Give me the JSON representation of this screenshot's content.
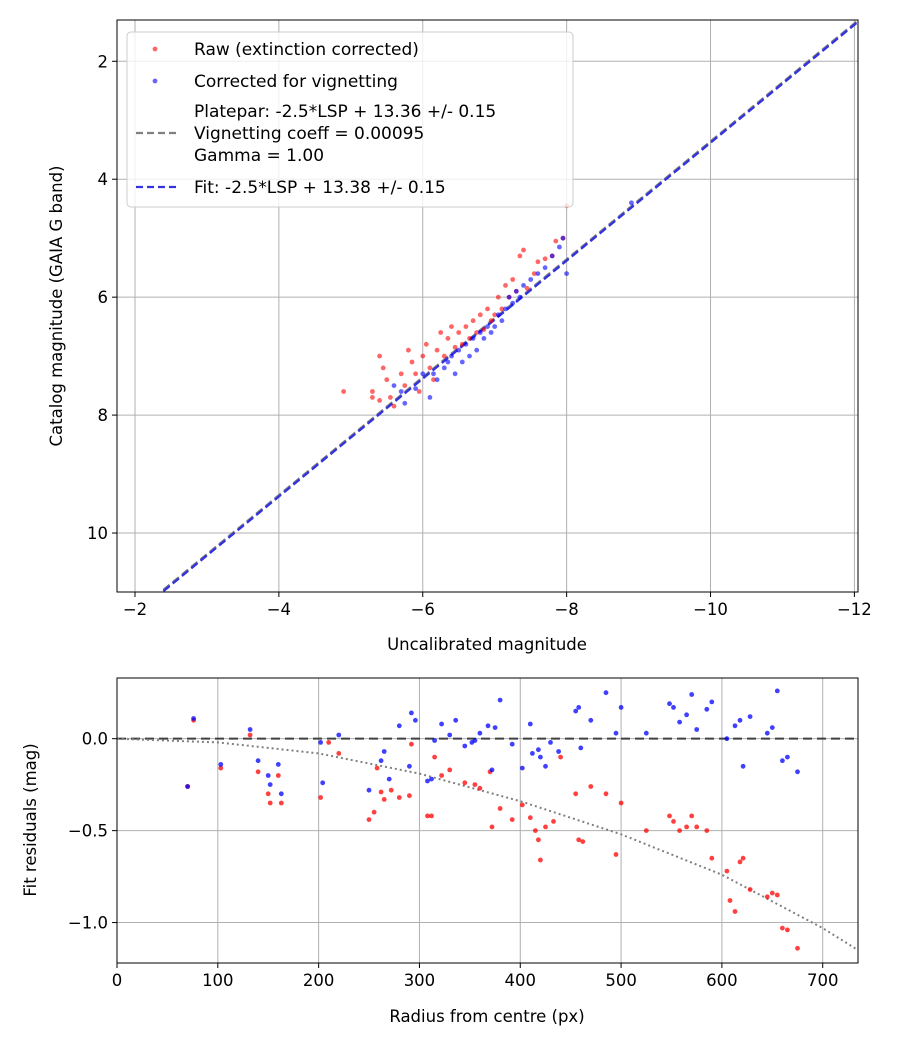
{
  "chart_data": [
    {
      "type": "scatter",
      "xlabel": "Uncalibrated magnitude",
      "ylabel": "Catalog magnitude (GAIA G band)",
      "xlim": [
        -1.75,
        -12.05
      ],
      "ylim": [
        11.0,
        1.3
      ],
      "x_inverted": true,
      "y_inverted": true,
      "xticks": [
        -2,
        -4,
        -6,
        -8,
        -10,
        -12
      ],
      "xtick_labels": [
        "−2",
        "−4",
        "−6",
        "−8",
        "−10",
        "−12"
      ],
      "yticks": [
        2,
        4,
        6,
        8,
        10
      ],
      "ytick_labels": [
        "2",
        "4",
        "6",
        "8",
        "10"
      ],
      "grid": true,
      "legend_position": "upper-left",
      "legend": [
        {
          "label": "Raw (extinction corrected)",
          "kind": "marker",
          "color": "#ff0000"
        },
        {
          "label": "Corrected for vignetting",
          "kind": "marker",
          "color": "#0000ff"
        },
        {
          "lines": [
            "Platepar: -2.5*LSP + 13.36 +/- 0.15",
            "Vignetting coeff = 0.00095",
            "Gamma = 1.00"
          ],
          "kind": "dashed",
          "color": "#808080"
        },
        {
          "label": "Fit: -2.5*LSP + 13.38 +/- 0.15",
          "kind": "dashed",
          "color": "#3333dd"
        }
      ],
      "lines": [
        {
          "name": "platepar",
          "slope": 1,
          "intercept": 13.36,
          "color": "#808080",
          "style": "dashed"
        },
        {
          "name": "fit",
          "slope": 1,
          "intercept": 13.38,
          "color": "#3333dd",
          "style": "dashed"
        }
      ],
      "series": [
        {
          "name": "Raw (extinction corrected)",
          "color": "#ff0000",
          "points": [
            [
              -4.9,
              7.6
            ],
            [
              -5.3,
              7.6
            ],
            [
              -5.3,
              7.7
            ],
            [
              -5.4,
              7.75
            ],
            [
              -5.4,
              7.0
            ],
            [
              -5.45,
              7.2
            ],
            [
              -5.5,
              7.4
            ],
            [
              -5.55,
              7.7
            ],
            [
              -5.6,
              7.85
            ],
            [
              -5.7,
              7.3
            ],
            [
              -5.75,
              7.5
            ],
            [
              -5.8,
              6.9
            ],
            [
              -5.85,
              7.1
            ],
            [
              -5.9,
              7.3
            ],
            [
              -5.95,
              7.6
            ],
            [
              -6.0,
              7.0
            ],
            [
              -6.05,
              6.8
            ],
            [
              -6.1,
              7.2
            ],
            [
              -6.15,
              7.4
            ],
            [
              -6.2,
              6.9
            ],
            [
              -6.25,
              6.6
            ],
            [
              -6.3,
              7.0
            ],
            [
              -6.35,
              6.7
            ],
            [
              -6.4,
              6.5
            ],
            [
              -6.45,
              6.85
            ],
            [
              -6.5,
              6.6
            ],
            [
              -6.55,
              6.8
            ],
            [
              -6.6,
              6.5
            ],
            [
              -6.65,
              6.7
            ],
            [
              -6.7,
              6.4
            ],
            [
              -6.75,
              6.6
            ],
            [
              -6.8,
              6.3
            ],
            [
              -6.85,
              6.55
            ],
            [
              -6.9,
              6.2
            ],
            [
              -6.95,
              6.4
            ],
            [
              -7.0,
              6.3
            ],
            [
              -7.05,
              6.0
            ],
            [
              -7.1,
              6.2
            ],
            [
              -7.15,
              5.8
            ],
            [
              -7.2,
              6.0
            ],
            [
              -7.25,
              5.7
            ],
            [
              -7.3,
              5.9
            ],
            [
              -7.35,
              5.3
            ],
            [
              -7.4,
              5.2
            ],
            [
              -7.45,
              5.85
            ],
            [
              -7.55,
              5.6
            ],
            [
              -7.6,
              5.4
            ],
            [
              -7.7,
              5.35
            ],
            [
              -7.8,
              5.3
            ],
            [
              -7.85,
              5.05
            ],
            [
              -7.95,
              5.0
            ],
            [
              -8.0,
              4.45
            ]
          ]
        },
        {
          "name": "Corrected for vignetting",
          "color": "#0000ff",
          "points": [
            [
              -5.6,
              7.5
            ],
            [
              -5.7,
              7.6
            ],
            [
              -5.75,
              7.8
            ],
            [
              -5.9,
              7.55
            ],
            [
              -6.0,
              7.3
            ],
            [
              -6.1,
              7.7
            ],
            [
              -6.15,
              7.3
            ],
            [
              -6.2,
              7.4
            ],
            [
              -6.3,
              7.2
            ],
            [
              -6.35,
              7.1
            ],
            [
              -6.4,
              7.0
            ],
            [
              -6.45,
              7.3
            ],
            [
              -6.5,
              6.9
            ],
            [
              -6.55,
              7.1
            ],
            [
              -6.6,
              6.8
            ],
            [
              -6.65,
              7.0
            ],
            [
              -6.7,
              6.7
            ],
            [
              -6.75,
              6.9
            ],
            [
              -6.8,
              6.6
            ],
            [
              -6.85,
              6.7
            ],
            [
              -6.9,
              6.5
            ],
            [
              -6.95,
              6.6
            ],
            [
              -7.0,
              6.5
            ],
            [
              -7.05,
              6.3
            ],
            [
              -7.1,
              6.4
            ],
            [
              -7.15,
              6.2
            ],
            [
              -7.2,
              6.0
            ],
            [
              -7.25,
              6.1
            ],
            [
              -7.3,
              5.9
            ],
            [
              -7.35,
              6.0
            ],
            [
              -7.4,
              5.8
            ],
            [
              -7.5,
              5.7
            ],
            [
              -7.6,
              5.6
            ],
            [
              -7.7,
              5.5
            ],
            [
              -7.8,
              5.3
            ],
            [
              -7.9,
              5.15
            ],
            [
              -7.95,
              5.0
            ],
            [
              -8.0,
              5.6
            ],
            [
              -8.9,
              4.4
            ]
          ]
        }
      ]
    },
    {
      "type": "scatter",
      "xlabel": "Radius from centre (px)",
      "ylabel": "Fit residuals (mag)",
      "xlim": [
        0,
        735
      ],
      "ylim": [
        -1.22,
        0.33
      ],
      "xticks": [
        0,
        100,
        200,
        300,
        400,
        500,
        600,
        700
      ],
      "xtick_labels": [
        "0",
        "100",
        "200",
        "300",
        "400",
        "500",
        "600",
        "700"
      ],
      "yticks": [
        0.0,
        -0.5,
        -1.0
      ],
      "ytick_labels": [
        "0.0",
        "−0.5",
        "−1.0"
      ],
      "grid": true,
      "lines": [
        {
          "name": "zero",
          "type": "hline",
          "y": 0.0,
          "color": "#404040",
          "style": "dashed"
        },
        {
          "name": "vignetting model",
          "type": "dotted-curve",
          "color": "#808080",
          "points": [
            [
              0,
              0.0
            ],
            [
              100,
              -0.02
            ],
            [
              200,
              -0.08
            ],
            [
              300,
              -0.19
            ],
            [
              400,
              -0.34
            ],
            [
              500,
              -0.52
            ],
            [
              600,
              -0.74
            ],
            [
              700,
              -1.03
            ],
            [
              735,
              -1.15
            ]
          ]
        }
      ],
      "series": [
        {
          "name": "Raw (extinction corrected)",
          "color": "#ff0000",
          "points": [
            [
              70,
              -0.26
            ],
            [
              76,
              0.1
            ],
            [
              103,
              -0.16
            ],
            [
              132,
              0.02
            ],
            [
              140,
              -0.18
            ],
            [
              150,
              -0.3
            ],
            [
              152,
              -0.35
            ],
            [
              160,
              -0.2
            ],
            [
              163,
              -0.35
            ],
            [
              202,
              -0.32
            ],
            [
              210,
              -0.02
            ],
            [
              220,
              -0.08
            ],
            [
              250,
              -0.44
            ],
            [
              255,
              -0.4
            ],
            [
              258,
              -0.16
            ],
            [
              262,
              -0.29
            ],
            [
              265,
              -0.33
            ],
            [
              272,
              -0.28
            ],
            [
              280,
              -0.32
            ],
            [
              290,
              -0.31
            ],
            [
              292,
              -0.03
            ],
            [
              308,
              -0.42
            ],
            [
              312,
              -0.42
            ],
            [
              315,
              -0.1
            ],
            [
              322,
              -0.2
            ],
            [
              330,
              -0.17
            ],
            [
              345,
              -0.24
            ],
            [
              355,
              -0.25
            ],
            [
              360,
              -0.27
            ],
            [
              370,
              -0.18
            ],
            [
              372,
              -0.48
            ],
            [
              380,
              -0.38
            ],
            [
              392,
              -0.44
            ],
            [
              402,
              -0.36
            ],
            [
              410,
              -0.43
            ],
            [
              415,
              -0.5
            ],
            [
              418,
              -0.55
            ],
            [
              420,
              -0.66
            ],
            [
              425,
              -0.48
            ],
            [
              433,
              -0.45
            ],
            [
              440,
              -0.1
            ],
            [
              455,
              -0.3
            ],
            [
              458,
              -0.55
            ],
            [
              462,
              -0.56
            ],
            [
              470,
              -0.26
            ],
            [
              485,
              -0.3
            ],
            [
              495,
              -0.63
            ],
            [
              500,
              -0.35
            ],
            [
              525,
              -0.5
            ],
            [
              548,
              -0.42
            ],
            [
              552,
              -0.45
            ],
            [
              558,
              -0.5
            ],
            [
              565,
              -0.48
            ],
            [
              570,
              -0.42
            ],
            [
              575,
              -0.48
            ],
            [
              585,
              -0.5
            ],
            [
              590,
              -0.65
            ],
            [
              605,
              -0.72
            ],
            [
              608,
              -0.88
            ],
            [
              613,
              -0.94
            ],
            [
              618,
              -0.67
            ],
            [
              621,
              -0.65
            ],
            [
              628,
              -0.82
            ],
            [
              645,
              -0.86
            ],
            [
              650,
              -0.84
            ],
            [
              655,
              -0.85
            ],
            [
              660,
              -1.03
            ],
            [
              665,
              -1.04
            ],
            [
              675,
              -1.14
            ]
          ]
        },
        {
          "name": "Corrected for vignetting",
          "color": "#0000ff",
          "points": [
            [
              70,
              -0.26
            ],
            [
              76,
              0.11
            ],
            [
              103,
              -0.14
            ],
            [
              132,
              0.05
            ],
            [
              140,
              -0.12
            ],
            [
              150,
              -0.2
            ],
            [
              152,
              -0.25
            ],
            [
              160,
              -0.14
            ],
            [
              163,
              -0.3
            ],
            [
              202,
              -0.02
            ],
            [
              204,
              -0.24
            ],
            [
              220,
              0.02
            ],
            [
              250,
              -0.28
            ],
            [
              262,
              -0.12
            ],
            [
              265,
              -0.07
            ],
            [
              270,
              -0.22
            ],
            [
              280,
              0.07
            ],
            [
              290,
              -0.15
            ],
            [
              292,
              0.14
            ],
            [
              296,
              0.1
            ],
            [
              308,
              -0.23
            ],
            [
              312,
              -0.22
            ],
            [
              315,
              -0.01
            ],
            [
              322,
              0.08
            ],
            [
              330,
              0.02
            ],
            [
              336,
              0.1
            ],
            [
              345,
              -0.04
            ],
            [
              352,
              -0.02
            ],
            [
              355,
              -0.01
            ],
            [
              360,
              0.03
            ],
            [
              368,
              0.07
            ],
            [
              372,
              -0.17
            ],
            [
              375,
              0.06
            ],
            [
              380,
              0.21
            ],
            [
              392,
              -0.03
            ],
            [
              402,
              -0.16
            ],
            [
              410,
              0.08
            ],
            [
              412,
              -0.08
            ],
            [
              418,
              -0.06
            ],
            [
              420,
              -0.1
            ],
            [
              425,
              -0.15
            ],
            [
              430,
              -0.02
            ],
            [
              438,
              -0.07
            ],
            [
              455,
              0.15
            ],
            [
              458,
              0.17
            ],
            [
              460,
              -0.05
            ],
            [
              470,
              0.1
            ],
            [
              485,
              0.25
            ],
            [
              495,
              0.03
            ],
            [
              500,
              0.17
            ],
            [
              525,
              0.03
            ],
            [
              548,
              0.19
            ],
            [
              552,
              0.17
            ],
            [
              558,
              0.09
            ],
            [
              565,
              0.13
            ],
            [
              570,
              0.24
            ],
            [
              575,
              0.05
            ],
            [
              585,
              0.16
            ],
            [
              590,
              0.2
            ],
            [
              605,
              0.0
            ],
            [
              613,
              0.07
            ],
            [
              618,
              0.1
            ],
            [
              621,
              -0.15
            ],
            [
              628,
              0.12
            ],
            [
              645,
              0.03
            ],
            [
              650,
              0.06
            ],
            [
              655,
              0.26
            ],
            [
              660,
              -0.12
            ],
            [
              665,
              -0.1
            ],
            [
              675,
              -0.18
            ]
          ]
        }
      ]
    }
  ]
}
